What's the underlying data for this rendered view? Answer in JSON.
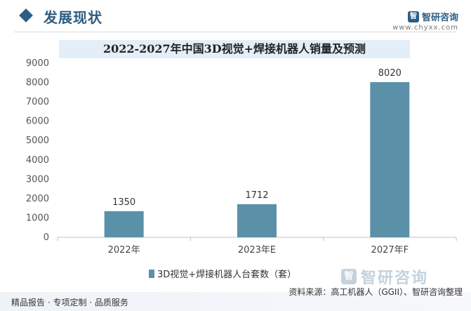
{
  "header": {
    "section_title": "发展现状",
    "brand_name": "智研咨询",
    "brand_url": "www.chyxx.com",
    "logo_glyph": "智"
  },
  "watermark": {
    "text": "智研咨询"
  },
  "colors": {
    "bar": "#5b91a8",
    "accent": "#2e5d82",
    "title_band": "#e3eef8"
  },
  "chart_data": {
    "type": "bar",
    "title": "2022-2027年中国3D视觉+焊接机器人销量及预测",
    "categories": [
      "2022年",
      "2023年E",
      "2027年F"
    ],
    "series": [
      {
        "name": "3D视觉+焊接机器人台套数（套）",
        "values": [
          1350,
          1712,
          8020
        ]
      }
    ],
    "ylim": [
      0,
      9000
    ],
    "yticks": [
      0,
      1000,
      2000,
      3000,
      4000,
      5000,
      6000,
      7000,
      8000,
      9000
    ],
    "xlabel": "",
    "ylabel": "",
    "grid": false,
    "legend": "bottom-center",
    "data_labels": true
  },
  "footer": {
    "left": "精品报告 · 专项定制 · 品质服务",
    "source": "资料来源：高工机器人（GGII）、智研咨询整理"
  }
}
